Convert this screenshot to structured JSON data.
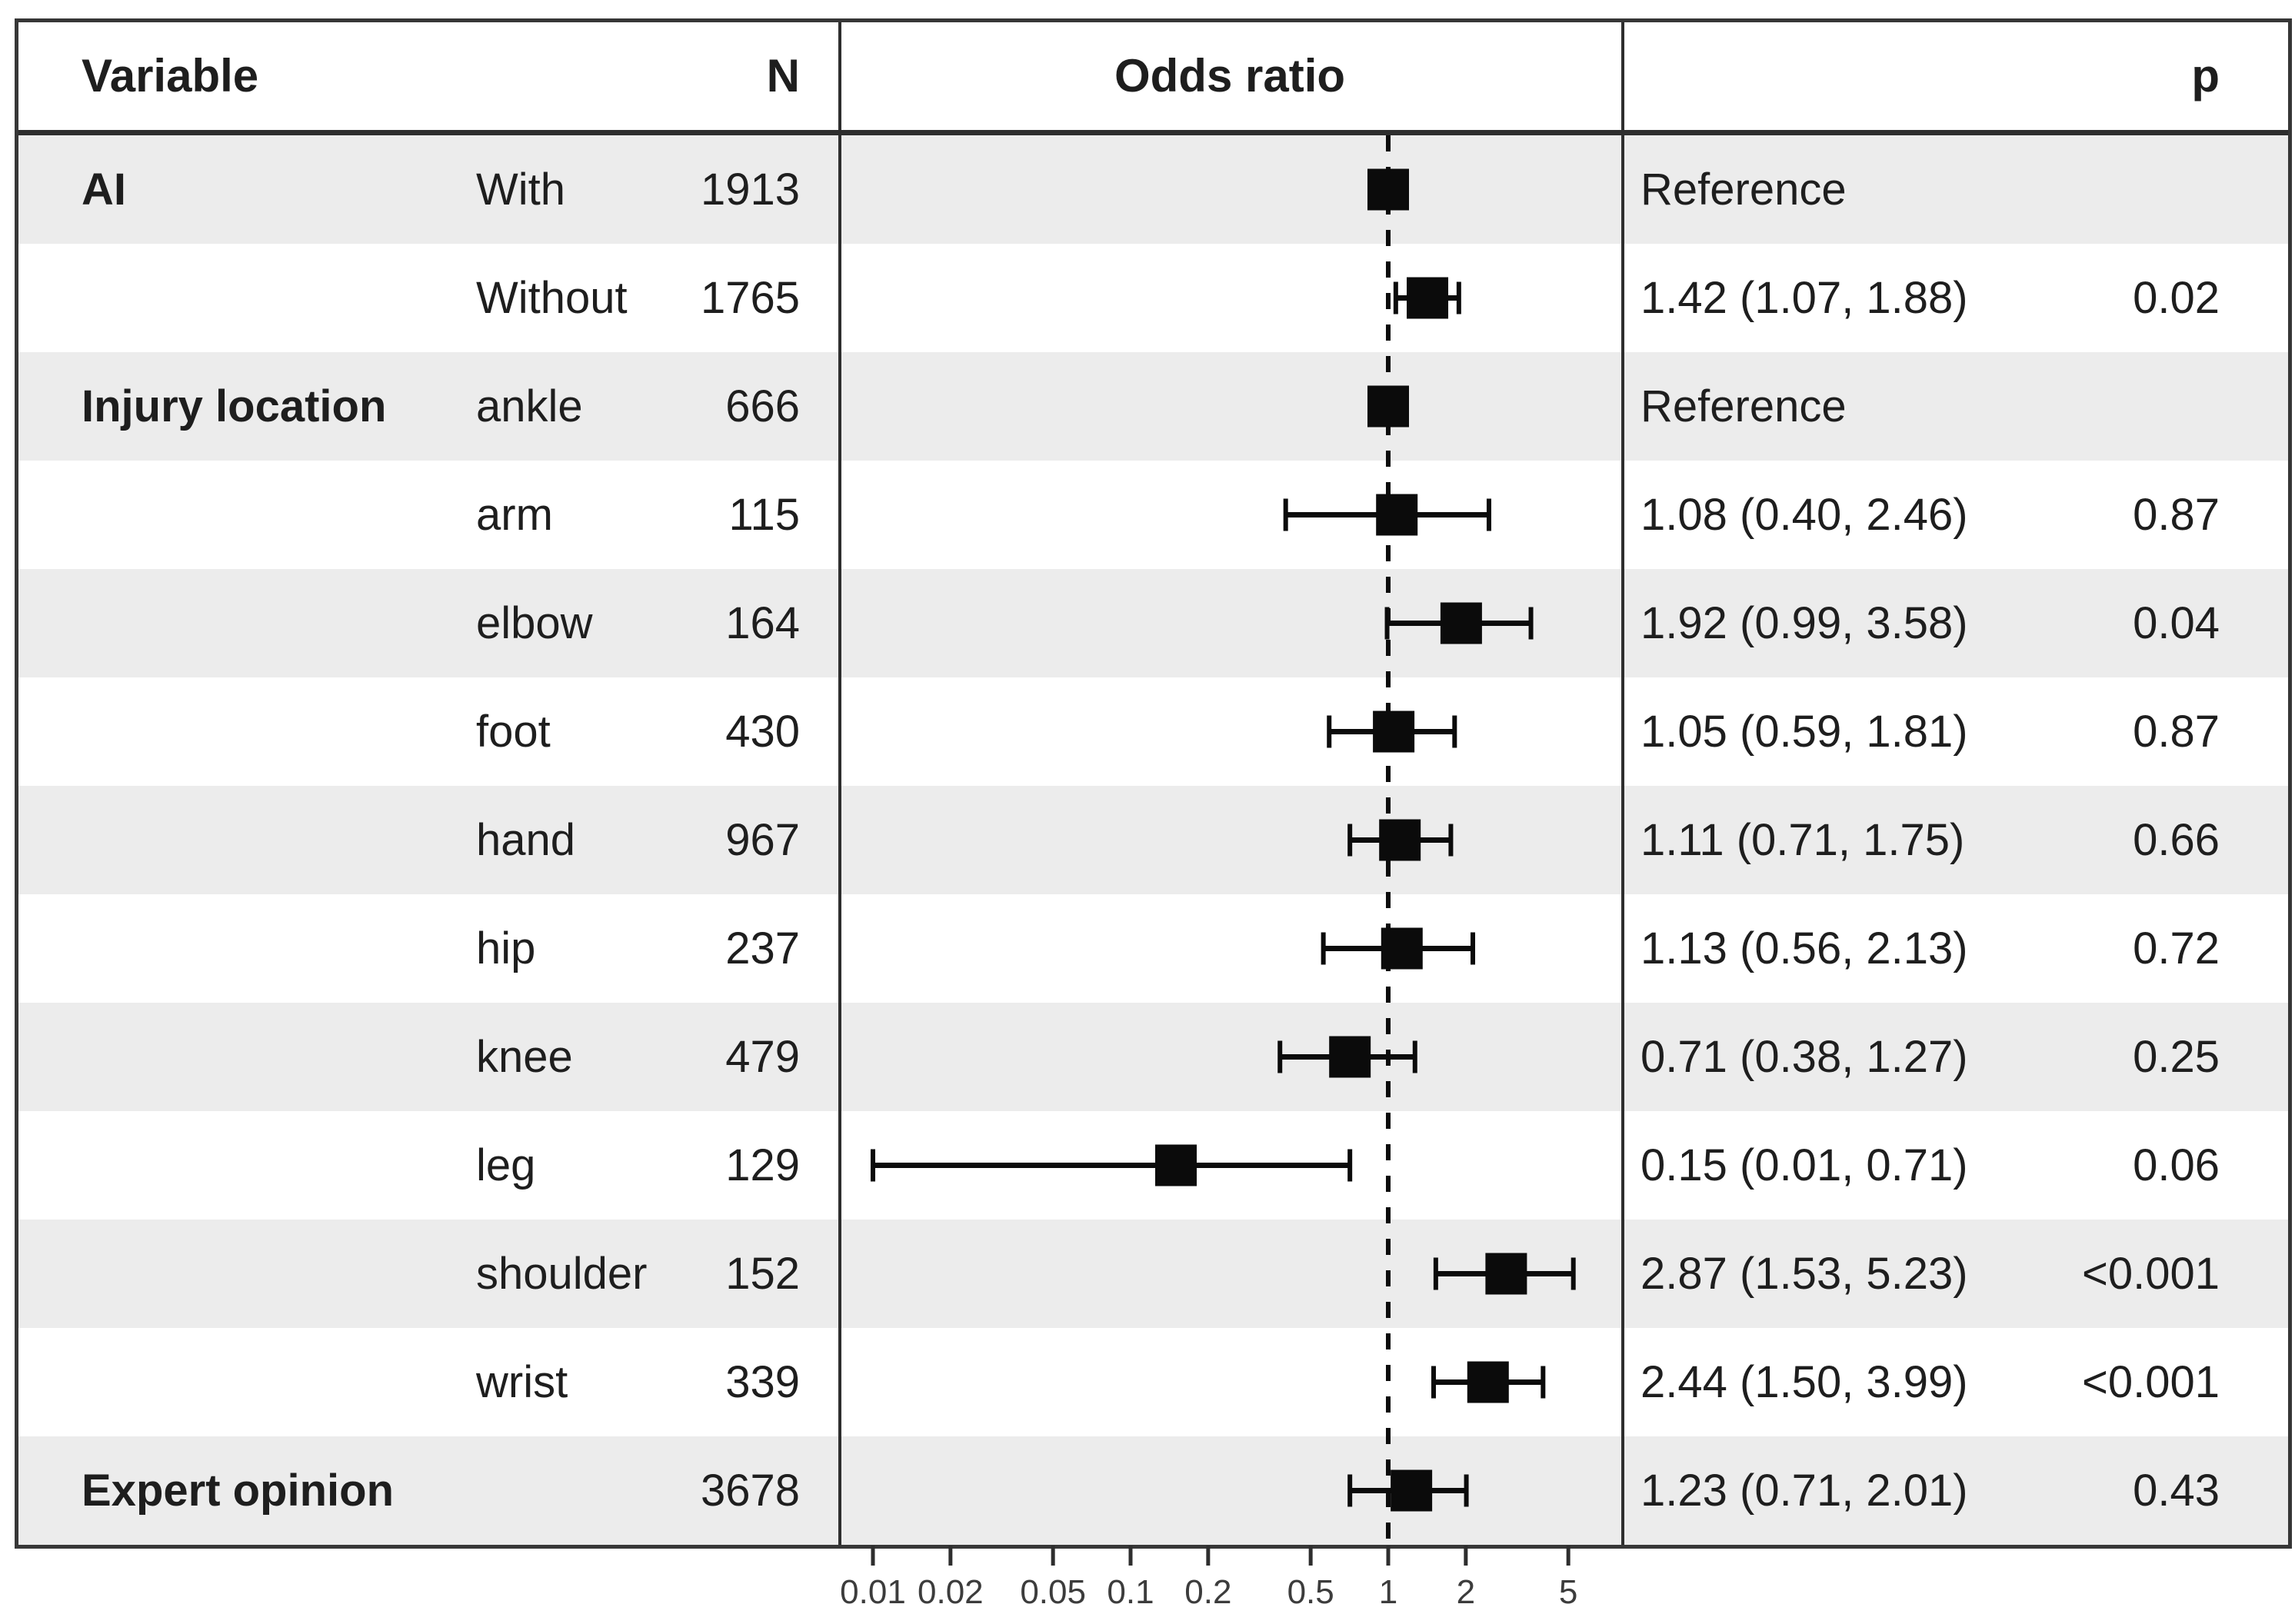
{
  "header": {
    "variable": "Variable",
    "n": "N",
    "odds_ratio": "Odds ratio",
    "p": "p"
  },
  "colors": {
    "stripe_gray": "#ececec",
    "row_white": "#ffffff",
    "marker_black": "#0b0b0b",
    "border_dark": "#373737",
    "divider_dark": "#2e2e2e",
    "text_dark": "#1e1e1e",
    "axis_text": "#3c3c3c"
  },
  "chart_data": {
    "type": "scatter",
    "variant": "forest-plot",
    "title": "Odds ratio",
    "x_scale": "log10",
    "x_ticks": [
      "0.01",
      "0.02",
      "0.05",
      "0.1",
      "0.2",
      "0.5",
      "1",
      "2",
      "5"
    ],
    "x_axis_range_approx": [
      0.007,
      7
    ],
    "reference_line": 1,
    "grid": false,
    "legend": false,
    "rows": [
      {
        "group": "AI",
        "level": "With",
        "n": "1913",
        "estimate_label": "Reference",
        "p": "",
        "or": 1.0,
        "ci_low": null,
        "ci_high": null,
        "reference": true
      },
      {
        "group": "",
        "level": "Without",
        "n": "1765",
        "estimate_label": "1.42 (1.07, 1.88)",
        "p": "0.02",
        "or": 1.42,
        "ci_low": 1.07,
        "ci_high": 1.88,
        "reference": false
      },
      {
        "group": "Injury location",
        "level": "ankle",
        "n": "666",
        "estimate_label": "Reference",
        "p": "",
        "or": 1.0,
        "ci_low": null,
        "ci_high": null,
        "reference": true
      },
      {
        "group": "",
        "level": "arm",
        "n": "115",
        "estimate_label": "1.08 (0.40, 2.46)",
        "p": "0.87",
        "or": 1.08,
        "ci_low": 0.4,
        "ci_high": 2.46,
        "reference": false
      },
      {
        "group": "",
        "level": "elbow",
        "n": "164",
        "estimate_label": "1.92 (0.99, 3.58)",
        "p": "0.04",
        "or": 1.92,
        "ci_low": 0.99,
        "ci_high": 3.58,
        "reference": false
      },
      {
        "group": "",
        "level": "foot",
        "n": "430",
        "estimate_label": "1.05 (0.59, 1.81)",
        "p": "0.87",
        "or": 1.05,
        "ci_low": 0.59,
        "ci_high": 1.81,
        "reference": false
      },
      {
        "group": "",
        "level": "hand",
        "n": "967",
        "estimate_label": "1.11 (0.71, 1.75)",
        "p": "0.66",
        "or": 1.11,
        "ci_low": 0.71,
        "ci_high": 1.75,
        "reference": false
      },
      {
        "group": "",
        "level": "hip",
        "n": "237",
        "estimate_label": "1.13 (0.56, 2.13)",
        "p": "0.72",
        "or": 1.13,
        "ci_low": 0.56,
        "ci_high": 2.13,
        "reference": false
      },
      {
        "group": "",
        "level": "knee",
        "n": "479",
        "estimate_label": "0.71 (0.38, 1.27)",
        "p": "0.25",
        "or": 0.71,
        "ci_low": 0.38,
        "ci_high": 1.27,
        "reference": false
      },
      {
        "group": "",
        "level": "leg",
        "n": "129",
        "estimate_label": "0.15 (0.01, 0.71)",
        "p": "0.06",
        "or": 0.15,
        "ci_low": 0.01,
        "ci_high": 0.71,
        "reference": false
      },
      {
        "group": "",
        "level": "shoulder",
        "n": "152",
        "estimate_label": "2.87 (1.53, 5.23)",
        "p": "<0.001",
        "or": 2.87,
        "ci_low": 1.53,
        "ci_high": 5.23,
        "reference": false
      },
      {
        "group": "",
        "level": "wrist",
        "n": "339",
        "estimate_label": "2.44 (1.50, 3.99)",
        "p": "<0.001",
        "or": 2.44,
        "ci_low": 1.5,
        "ci_high": 3.99,
        "reference": false
      },
      {
        "group": "Expert opinion",
        "level": "",
        "n": "3678",
        "estimate_label": "1.23 (0.71, 2.01)",
        "p": "0.43",
        "or": 1.23,
        "ci_low": 0.71,
        "ci_high": 2.01,
        "reference": false
      }
    ]
  }
}
